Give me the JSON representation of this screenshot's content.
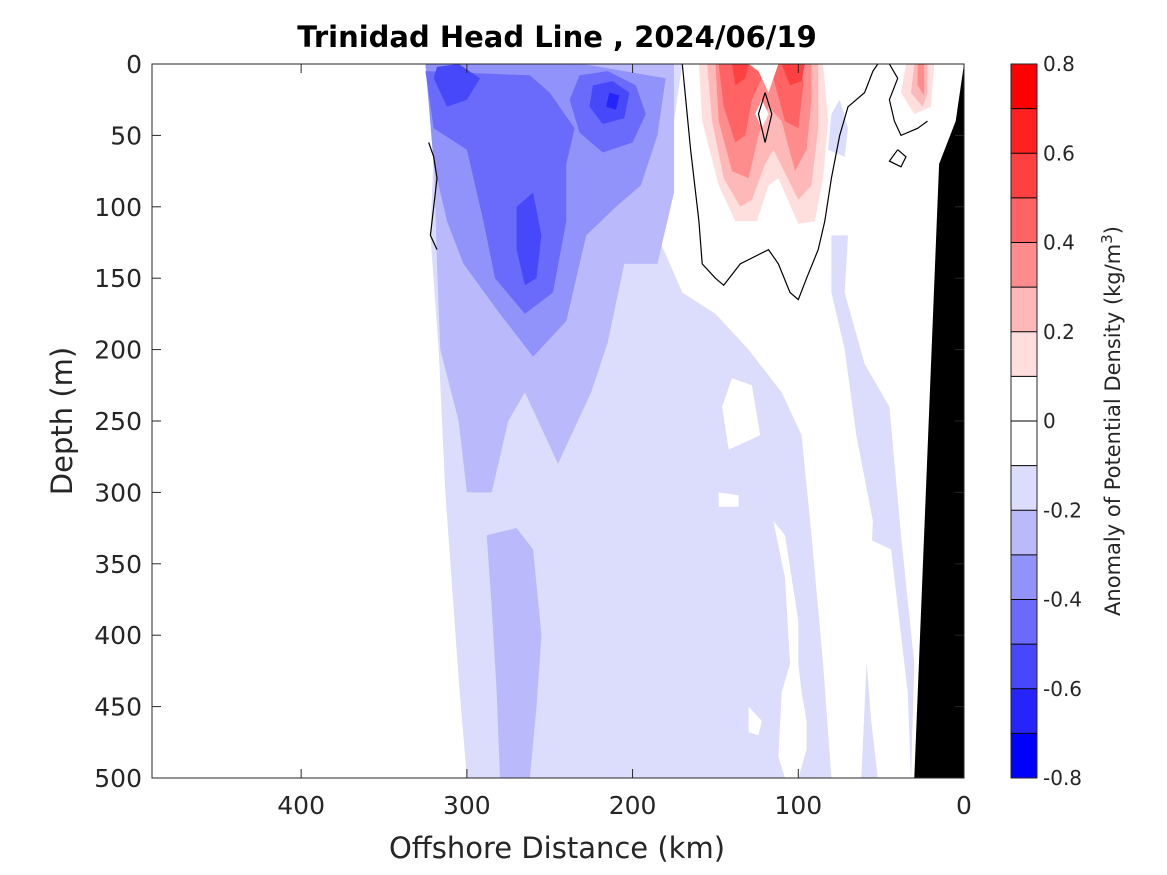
{
  "chart_data": {
    "type": "contour",
    "title": "Trinidad Head Line , 2024/06/19",
    "xlabel": "Offshore Distance (km)",
    "ylabel": "Depth (m)",
    "xlim": [
      490,
      0
    ],
    "ylim": [
      500,
      0
    ],
    "x_ticks": [
      "400",
      "300",
      "200",
      "100",
      "0"
    ],
    "y_ticks": [
      "0",
      "50",
      "100",
      "150",
      "200",
      "250",
      "300",
      "350",
      "400",
      "450",
      "500"
    ],
    "colorbar": {
      "label_main": "Anomaly of Potential Density (kg/m",
      "label_sup": "3",
      "label_close": ")",
      "range": [
        -0.8,
        0.8
      ],
      "ticks": [
        "0.8",
        "0.6",
        "0.4",
        "0.2",
        "0",
        "-0.2",
        "-0.4",
        "-0.6",
        "-0.8"
      ],
      "levels": [
        0.8,
        0.7,
        0.6,
        0.5,
        0.4,
        0.3,
        0.2,
        0.1,
        0,
        -0.1,
        -0.2,
        -0.3,
        -0.4,
        -0.5,
        -0.6,
        -0.7,
        -0.8
      ],
      "colors": [
        "#ff0000",
        "#ff2020",
        "#ff4040",
        "#ff6363",
        "#ff8c8c",
        "#ffb8b8",
        "#ffdede",
        "#ffffff",
        "#ffffff",
        "#dcdcfc",
        "#b9b9fb",
        "#9292fb",
        "#6b6bfb",
        "#4848fb",
        "#2424fb",
        "#0000ff"
      ]
    },
    "regions": [
      {
        "level": -0.1,
        "color": "#dcdcfc",
        "points": [
          [
            325,
            0
          ],
          [
            320,
            60
          ],
          [
            322,
            120
          ],
          [
            317,
            200
          ],
          [
            313,
            300
          ],
          [
            305,
            430
          ],
          [
            300,
            500
          ],
          [
            80,
            500
          ],
          [
            85,
            420
          ],
          [
            92,
            330
          ],
          [
            98,
            260
          ],
          [
            110,
            230
          ],
          [
            130,
            200
          ],
          [
            150,
            175
          ],
          [
            170,
            160
          ],
          [
            185,
            120
          ],
          [
            170,
            0
          ]
        ]
      },
      {
        "level": -0.1,
        "color": "#dcdcfc",
        "points": [
          [
            70,
            120
          ],
          [
            72,
            160
          ],
          [
            60,
            210
          ],
          [
            45,
            240
          ],
          [
            38,
            330
          ],
          [
            30,
            420
          ],
          [
            32,
            500
          ],
          [
            62,
            500
          ],
          [
            58,
            400
          ],
          [
            55,
            320
          ],
          [
            65,
            260
          ],
          [
            72,
            200
          ],
          [
            80,
            160
          ],
          [
            80,
            120
          ]
        ]
      },
      {
        "level": -0.1,
        "color": "#dcdcfc",
        "points": [
          [
            75,
            25
          ],
          [
            70,
            45
          ],
          [
            72,
            65
          ],
          [
            82,
            60
          ],
          [
            80,
            35
          ]
        ]
      },
      {
        "level": -0.2,
        "color": "#b9b9fb",
        "points": [
          [
            325,
            0
          ],
          [
            320,
            60
          ],
          [
            318,
            140
          ],
          [
            316,
            200
          ],
          [
            305,
            250
          ],
          [
            300,
            300
          ],
          [
            285,
            300
          ],
          [
            275,
            250
          ],
          [
            265,
            230
          ],
          [
            245,
            280
          ],
          [
            225,
            230
          ],
          [
            215,
            195
          ],
          [
            205,
            140
          ],
          [
            185,
            140
          ],
          [
            175,
            90
          ],
          [
            175,
            0
          ]
        ]
      },
      {
        "level": -0.2,
        "color": "#b9b9fb",
        "points": [
          [
            270,
            325
          ],
          [
            260,
            340
          ],
          [
            255,
            400
          ],
          [
            258,
            450
          ],
          [
            262,
            500
          ],
          [
            280,
            500
          ],
          [
            282,
            440
          ],
          [
            285,
            380
          ],
          [
            288,
            330
          ]
        ]
      },
      {
        "level": -0.3,
        "color": "#9292fb",
        "points": [
          [
            325,
            0
          ],
          [
            320,
            70
          ],
          [
            312,
            110
          ],
          [
            302,
            140
          ],
          [
            280,
            175
          ],
          [
            260,
            205
          ],
          [
            240,
            180
          ],
          [
            228,
            120
          ],
          [
            210,
            100
          ],
          [
            195,
            85
          ],
          [
            185,
            50
          ],
          [
            180,
            10
          ],
          [
            230,
            0
          ]
        ]
      },
      {
        "level": -0.4,
        "color": "#6b6bfb",
        "points": [
          [
            325,
            5
          ],
          [
            320,
            45
          ],
          [
            300,
            60
          ],
          [
            290,
            110
          ],
          [
            283,
            150
          ],
          [
            265,
            175
          ],
          [
            248,
            160
          ],
          [
            240,
            110
          ],
          [
            240,
            70
          ],
          [
            235,
            45
          ],
          [
            250,
            20
          ],
          [
            262,
            8
          ]
        ]
      },
      {
        "level": -0.4,
        "color": "#6b6bfb",
        "points": [
          [
            232,
            8
          ],
          [
            215,
            5
          ],
          [
            198,
            15
          ],
          [
            192,
            35
          ],
          [
            200,
            55
          ],
          [
            218,
            62
          ],
          [
            232,
            48
          ],
          [
            238,
            25
          ]
        ]
      },
      {
        "level": -0.5,
        "color": "#4848fb",
        "points": [
          [
            320,
            10
          ],
          [
            312,
            30
          ],
          [
            300,
            25
          ],
          [
            292,
            10
          ],
          [
            305,
            0
          ],
          [
            318,
            2
          ]
        ]
      },
      {
        "level": -0.5,
        "color": "#4848fb",
        "points": [
          [
            260,
            90
          ],
          [
            255,
            120
          ],
          [
            258,
            150
          ],
          [
            265,
            155
          ],
          [
            270,
            130
          ],
          [
            270,
            100
          ]
        ]
      },
      {
        "level": -0.5,
        "color": "#4848fb",
        "points": [
          [
            224,
            15
          ],
          [
            212,
            12
          ],
          [
            202,
            20
          ],
          [
            205,
            38
          ],
          [
            218,
            42
          ],
          [
            226,
            30
          ]
        ]
      },
      {
        "level": -0.6,
        "color": "#2424fb",
        "points": [
          [
            214,
            20
          ],
          [
            208,
            22
          ],
          [
            210,
            32
          ],
          [
            216,
            30
          ]
        ]
      },
      {
        "level": 0.1,
        "color": "#ffdede",
        "points": [
          [
            160,
            0
          ],
          [
            158,
            40
          ],
          [
            148,
            85
          ],
          [
            138,
            110
          ],
          [
            125,
            110
          ],
          [
            118,
            85
          ],
          [
            112,
            80
          ],
          [
            100,
            112
          ],
          [
            90,
            110
          ],
          [
            85,
            80
          ],
          [
            82,
            40
          ],
          [
            85,
            0
          ]
        ]
      },
      {
        "level": 0.1,
        "color": "#ffdede",
        "points": [
          [
            35,
            0
          ],
          [
            38,
            20
          ],
          [
            30,
            35
          ],
          [
            20,
            30
          ],
          [
            18,
            0
          ]
        ]
      },
      {
        "level": 0.2,
        "color": "#ffb8b8",
        "points": [
          [
            155,
            0
          ],
          [
            152,
            40
          ],
          [
            145,
            80
          ],
          [
            135,
            100
          ],
          [
            128,
            95
          ],
          [
            120,
            70
          ],
          [
            115,
            60
          ],
          [
            100,
            95
          ],
          [
            92,
            85
          ],
          [
            88,
            45
          ],
          [
            88,
            0
          ]
        ]
      },
      {
        "level": 0.2,
        "color": "#ffb8b8",
        "points": [
          [
            30,
            0
          ],
          [
            32,
            20
          ],
          [
            25,
            30
          ],
          [
            22,
            20
          ],
          [
            22,
            0
          ]
        ]
      },
      {
        "level": 0.3,
        "color": "#ff8c8c",
        "points": [
          [
            150,
            0
          ],
          [
            148,
            40
          ],
          [
            140,
            75
          ],
          [
            130,
            80
          ],
          [
            124,
            50
          ],
          [
            118,
            30
          ],
          [
            110,
            40
          ],
          [
            102,
            75
          ],
          [
            95,
            60
          ],
          [
            92,
            25
          ],
          [
            92,
            0
          ]
        ]
      },
      {
        "level": 0.3,
        "color": "#ff8c8c",
        "points": [
          [
            28,
            0
          ],
          [
            28,
            15
          ],
          [
            24,
            22
          ],
          [
            24,
            0
          ]
        ]
      },
      {
        "level": 0.4,
        "color": "#ff6363",
        "points": [
          [
            148,
            0
          ],
          [
            145,
            30
          ],
          [
            138,
            55
          ],
          [
            132,
            50
          ],
          [
            128,
            25
          ],
          [
            122,
            10
          ],
          [
            115,
            10
          ],
          [
            108,
            40
          ],
          [
            100,
            45
          ],
          [
            97,
            15
          ],
          [
            98,
            0
          ]
        ]
      },
      {
        "level": 0.5,
        "color": "#ff4040",
        "points": [
          [
            140,
            0
          ],
          [
            138,
            15
          ],
          [
            132,
            10
          ],
          [
            130,
            0
          ]
        ]
      },
      {
        "level": 0.5,
        "color": "#ff4040",
        "points": [
          [
            110,
            0
          ],
          [
            105,
            15
          ],
          [
            98,
            12
          ],
          [
            96,
            0
          ]
        ]
      }
    ],
    "white_patches": [
      [
        [
          140,
          0
        ],
        [
          130,
          0
        ],
        [
          124,
          5
        ],
        [
          118,
          20
        ],
        [
          112,
          0
        ]
      ],
      [
        [
          122,
          25
        ],
        [
          118,
          35
        ],
        [
          122,
          45
        ],
        [
          126,
          35
        ]
      ],
      [
        [
          140,
          220
        ],
        [
          128,
          225
        ],
        [
          123,
          260
        ],
        [
          142,
          270
        ],
        [
          146,
          240
        ]
      ],
      [
        [
          148,
          300
        ],
        [
          136,
          302
        ],
        [
          136,
          310
        ],
        [
          148,
          310
        ]
      ],
      [
        [
          115,
          320
        ],
        [
          108,
          360
        ],
        [
          105,
          420
        ],
        [
          110,
          440
        ],
        [
          112,
          485
        ],
        [
          108,
          500
        ],
        [
          100,
          500
        ],
        [
          95,
          480
        ],
        [
          95,
          460
        ],
        [
          98,
          440
        ],
        [
          100,
          420
        ],
        [
          100,
          390
        ],
        [
          104,
          360
        ],
        [
          108,
          330
        ]
      ],
      [
        [
          130,
          450
        ],
        [
          122,
          460
        ],
        [
          124,
          470
        ],
        [
          130,
          468
        ]
      ],
      [
        [
          62,
          330
        ],
        [
          60,
          400
        ],
        [
          56,
          460
        ],
        [
          52,
          500
        ],
        [
          32,
          500
        ],
        [
          34,
          440
        ],
        [
          40,
          380
        ],
        [
          44,
          340
        ]
      ]
    ],
    "zero_contours": [
      [
        [
          170,
          0
        ],
        [
          165,
          60
        ],
        [
          160,
          110
        ],
        [
          158,
          140
        ],
        [
          150,
          150
        ],
        [
          145,
          155
        ],
        [
          135,
          140
        ],
        [
          118,
          130
        ],
        [
          112,
          140
        ],
        [
          105,
          160
        ],
        [
          100,
          165
        ],
        [
          95,
          150
        ],
        [
          88,
          130
        ],
        [
          84,
          110
        ],
        [
          80,
          80
        ],
        [
          75,
          50
        ],
        [
          70,
          30
        ],
        [
          60,
          20
        ],
        [
          55,
          5
        ],
        [
          52,
          0
        ]
      ],
      [
        [
          45,
          0
        ],
        [
          40,
          10
        ],
        [
          45,
          25
        ],
        [
          42,
          40
        ],
        [
          38,
          50
        ],
        [
          28,
          45
        ],
        [
          22,
          40
        ]
      ],
      [
        [
          120,
          20
        ],
        [
          116,
          35
        ],
        [
          120,
          55
        ],
        [
          124,
          35
        ],
        [
          120,
          20
        ]
      ],
      [
        [
          40,
          60
        ],
        [
          35,
          65
        ],
        [
          38,
          72
        ],
        [
          45,
          68
        ],
        [
          40,
          60
        ]
      ],
      [
        [
          323,
          55
        ],
        [
          320,
          65
        ],
        [
          318,
          80
        ],
        [
          320,
          100
        ],
        [
          322,
          120
        ],
        [
          318,
          130
        ]
      ]
    ],
    "bottom_topography": {
      "color": "#000000",
      "points": [
        [
          0,
          0
        ],
        [
          0,
          500
        ],
        [
          30,
          500
        ],
        [
          15,
          70
        ],
        [
          5,
          40
        ]
      ]
    }
  }
}
